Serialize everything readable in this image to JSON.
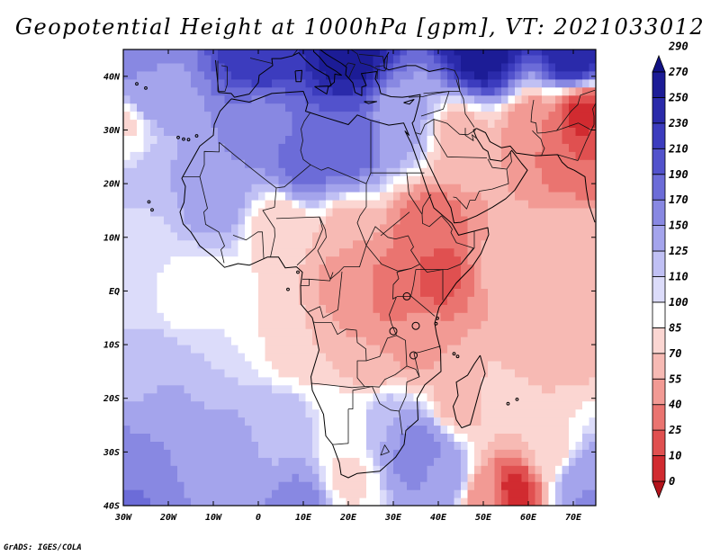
{
  "title": "Geopotential Height at 1000hPa [gpm], VT: 2021033012",
  "credit": "GrADS: IGES/COLA",
  "map": {
    "lon_range": [
      -30,
      75
    ],
    "lat_range": [
      -40,
      45
    ],
    "lon_ticks": [
      {
        "value": -30,
        "label": "30W"
      },
      {
        "value": -20,
        "label": "20W"
      },
      {
        "value": -10,
        "label": "10W"
      },
      {
        "value": 0,
        "label": "0"
      },
      {
        "value": 10,
        "label": "10E"
      },
      {
        "value": 20,
        "label": "20E"
      },
      {
        "value": 30,
        "label": "30E"
      },
      {
        "value": 40,
        "label": "40E"
      },
      {
        "value": 50,
        "label": "50E"
      },
      {
        "value": 60,
        "label": "60E"
      },
      {
        "value": 70,
        "label": "70E"
      }
    ],
    "lat_ticks": [
      {
        "value": 40,
        "label": "40N"
      },
      {
        "value": 30,
        "label": "30N"
      },
      {
        "value": 20,
        "label": "20N"
      },
      {
        "value": 10,
        "label": "10N"
      },
      {
        "value": 0,
        "label": "EQ"
      },
      {
        "value": -10,
        "label": "10S"
      },
      {
        "value": -20,
        "label": "20S"
      },
      {
        "value": -30,
        "label": "30S"
      },
      {
        "value": -40,
        "label": "40S"
      }
    ]
  },
  "colorbar": {
    "levels": [
      "0",
      "10",
      "25",
      "40",
      "55",
      "70",
      "85",
      "100",
      "110",
      "125",
      "150",
      "170",
      "190",
      "210",
      "230",
      "250",
      "270",
      "290"
    ],
    "colors": [
      "#b4141c",
      "#d12b30",
      "#e05050",
      "#ea7470",
      "#f29a94",
      "#f7bab4",
      "#fbd6d2",
      "#ffffff",
      "#dcdcfa",
      "#c0c0f4",
      "#a4a4ec",
      "#8888e2",
      "#6c6cd8",
      "#5252cc",
      "#3c3cbe",
      "#2a2aaa",
      "#1c1c96",
      "#121284"
    ]
  },
  "field_centers": [
    {
      "lon": -30,
      "lat": 45,
      "value": 170
    },
    {
      "lon": 0,
      "lat": 45,
      "value": 230
    },
    {
      "lon": 20,
      "lat": 44,
      "value": 260
    },
    {
      "lon": 50,
      "lat": 45,
      "value": 260
    },
    {
      "lon": 70,
      "lat": 44,
      "value": 250
    },
    {
      "lon": -25,
      "lat": 35,
      "value": 150
    },
    {
      "lon": -28,
      "lat": 32,
      "value": 80
    },
    {
      "lon": 0,
      "lat": 30,
      "value": 160
    },
    {
      "lon": 20,
      "lat": 28,
      "value": 190
    },
    {
      "lon": 10,
      "lat": 24,
      "value": 180
    },
    {
      "lon": 32,
      "lat": 31,
      "value": 130
    },
    {
      "lon": 45,
      "lat": 28,
      "value": 60
    },
    {
      "lon": 62,
      "lat": 30,
      "value": 40
    },
    {
      "lon": 72,
      "lat": 33,
      "value": 5
    },
    {
      "lon": 72,
      "lat": 24,
      "value": 25
    },
    {
      "lon": -20,
      "lat": 20,
      "value": 125
    },
    {
      "lon": -10,
      "lat": 18,
      "value": 140
    },
    {
      "lon": -25,
      "lat": 10,
      "value": 105
    },
    {
      "lon": 5,
      "lat": 12,
      "value": 70
    },
    {
      "lon": 20,
      "lat": 10,
      "value": 55
    },
    {
      "lon": 38,
      "lat": 12,
      "value": 30
    },
    {
      "lon": 40,
      "lat": 3,
      "value": 20
    },
    {
      "lon": 30,
      "lat": 0,
      "value": 30
    },
    {
      "lon": 20,
      "lat": 0,
      "value": 45
    },
    {
      "lon": 55,
      "lat": 5,
      "value": 60
    },
    {
      "lon": 70,
      "lat": 10,
      "value": 65
    },
    {
      "lon": -30,
      "lat": 0,
      "value": 105
    },
    {
      "lon": -15,
      "lat": 0,
      "value": 90
    },
    {
      "lon": 0,
      "lat": -5,
      "value": 85
    },
    {
      "lon": 10,
      "lat": -10,
      "value": 70
    },
    {
      "lon": 25,
      "lat": -12,
      "value": 55
    },
    {
      "lon": 35,
      "lat": -10,
      "value": 50
    },
    {
      "lon": 60,
      "lat": -10,
      "value": 55
    },
    {
      "lon": 72,
      "lat": -8,
      "value": 65
    },
    {
      "lon": -25,
      "lat": -15,
      "value": 120
    },
    {
      "lon": -10,
      "lat": -15,
      "value": 110
    },
    {
      "lon": -20,
      "lat": -25,
      "value": 150
    },
    {
      "lon": -30,
      "lat": -35,
      "value": 165
    },
    {
      "lon": -10,
      "lat": -30,
      "value": 145
    },
    {
      "lon": 5,
      "lat": -25,
      "value": 120
    },
    {
      "lon": 20,
      "lat": -25,
      "value": 90
    },
    {
      "lon": 28,
      "lat": -25,
      "value": 125
    },
    {
      "lon": 35,
      "lat": -30,
      "value": 170
    },
    {
      "lon": 42,
      "lat": -35,
      "value": 140
    },
    {
      "lon": 50,
      "lat": -38,
      "value": 45
    },
    {
      "lon": 57,
      "lat": -37,
      "value": 5
    },
    {
      "lon": 65,
      "lat": -30,
      "value": 75
    },
    {
      "lon": 72,
      "lat": -35,
      "value": 140
    },
    {
      "lon": 75,
      "lat": -40,
      "value": 170
    },
    {
      "lon": 10,
      "lat": -40,
      "value": 160
    },
    {
      "lon": 20,
      "lat": -35,
      "value": 80
    },
    {
      "lon": -30,
      "lat": -40,
      "value": 175
    },
    {
      "lon": 45,
      "lat": -20,
      "value": 60
    },
    {
      "lon": 55,
      "lat": -20,
      "value": 80
    }
  ]
}
